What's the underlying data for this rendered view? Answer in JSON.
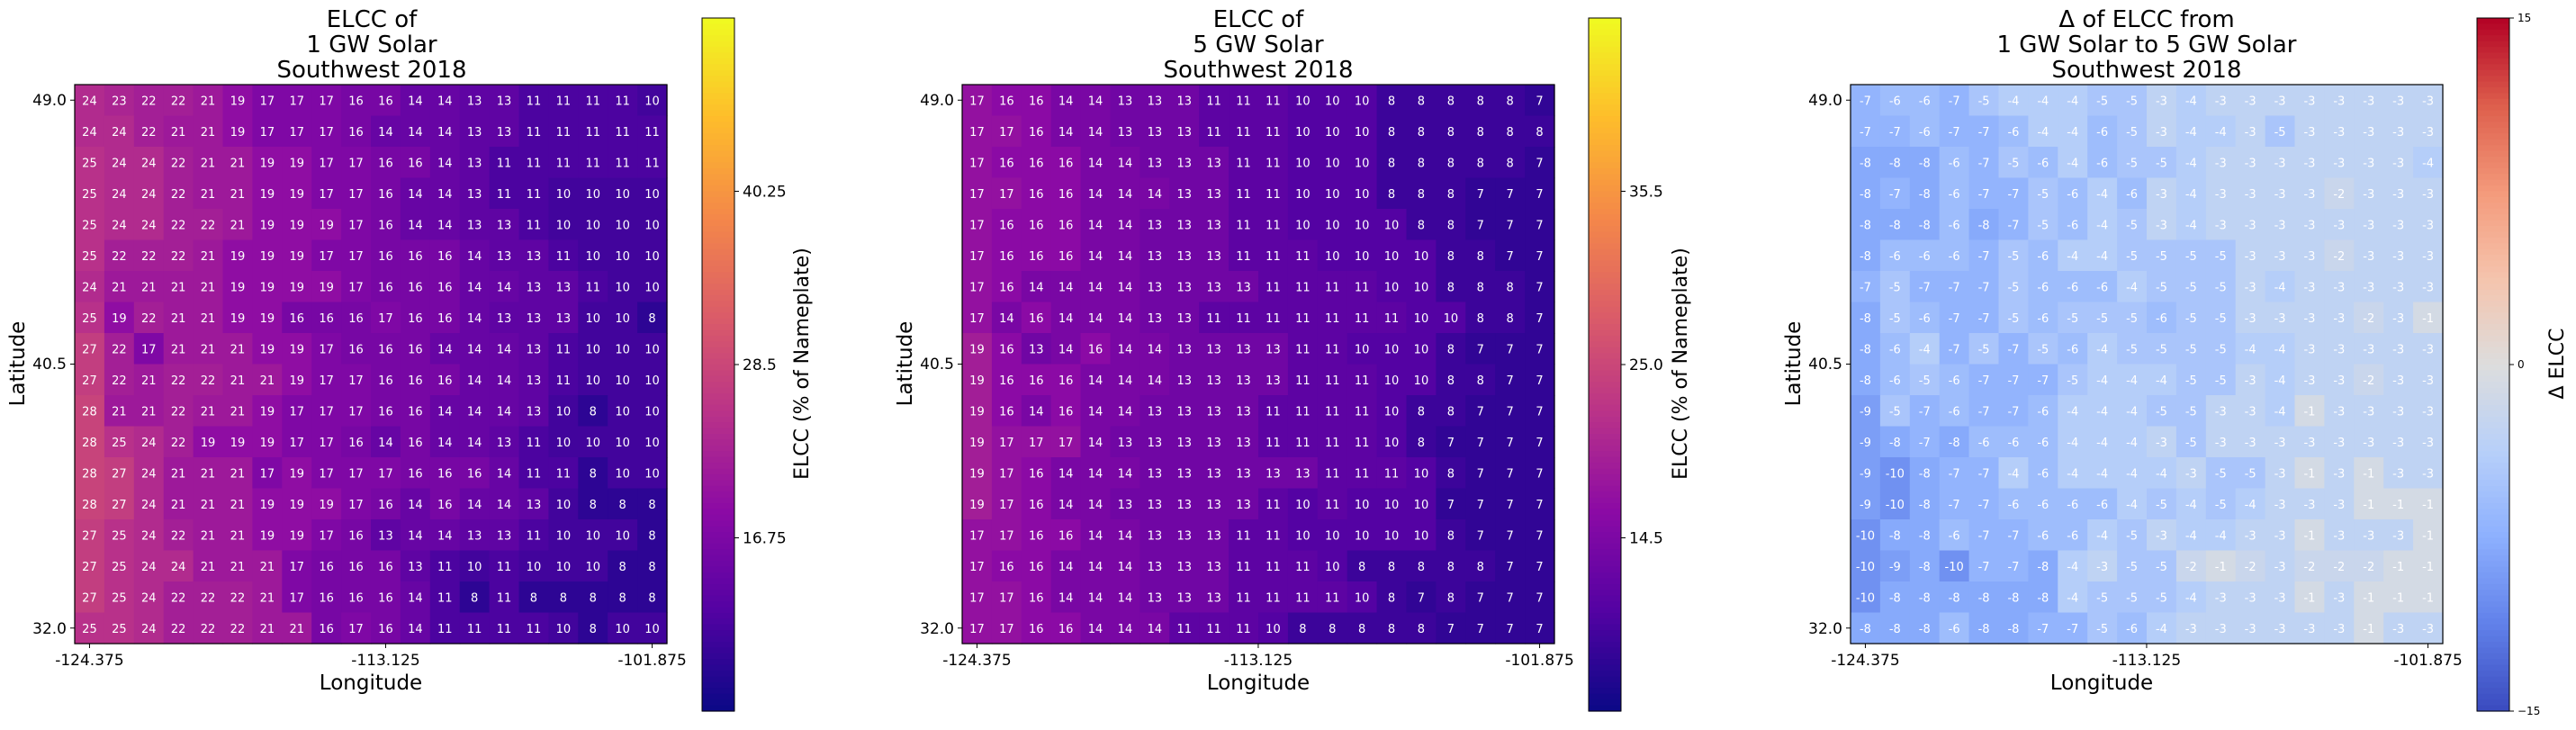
{
  "chart_data": [
    {
      "type": "heatmap",
      "title": [
        "ELCC of",
        "1 GW Solar",
        "Southwest 2018"
      ],
      "xlabel": "Longitude",
      "ylabel": "Latitude",
      "x_ticks": [
        "-124.375",
        "-113.125",
        "-101.875"
      ],
      "y_ticks": [
        "49.0",
        "40.5",
        "32.0"
      ],
      "colorbar": {
        "label": "ELCC (% of Nameplate)",
        "ticks": [
          "40.25",
          "28.5",
          "16.75"
        ],
        "range": [
          5,
          52
        ],
        "tick_values": [
          40.25,
          28.5,
          16.75
        ],
        "colormap": "plasma"
      },
      "values": [
        [
          24,
          23,
          22,
          22,
          21,
          19,
          17,
          17,
          17,
          16,
          16,
          14,
          14,
          13,
          13,
          11,
          11,
          11,
          11,
          10
        ],
        [
          24,
          24,
          22,
          21,
          21,
          19,
          17,
          17,
          17,
          16,
          14,
          14,
          14,
          13,
          13,
          11,
          11,
          11,
          11,
          11
        ],
        [
          25,
          24,
          24,
          22,
          21,
          21,
          19,
          19,
          17,
          17,
          16,
          16,
          14,
          13,
          11,
          11,
          11,
          11,
          11,
          11
        ],
        [
          25,
          24,
          24,
          22,
          21,
          21,
          19,
          19,
          17,
          17,
          16,
          14,
          14,
          13,
          11,
          11,
          10,
          10,
          10,
          10
        ],
        [
          25,
          24,
          24,
          22,
          22,
          21,
          19,
          19,
          19,
          17,
          16,
          14,
          14,
          13,
          13,
          11,
          10,
          10,
          10,
          10
        ],
        [
          25,
          22,
          22,
          22,
          21,
          19,
          19,
          19,
          17,
          17,
          16,
          16,
          16,
          14,
          13,
          13,
          11,
          10,
          10,
          10
        ],
        [
          24,
          21,
          21,
          21,
          21,
          19,
          19,
          19,
          19,
          17,
          16,
          16,
          16,
          14,
          14,
          13,
          13,
          11,
          10,
          10
        ],
        [
          25,
          19,
          22,
          21,
          21,
          19,
          19,
          16,
          16,
          16,
          17,
          16,
          16,
          14,
          13,
          13,
          13,
          10,
          10,
          8
        ],
        [
          27,
          22,
          17,
          21,
          21,
          21,
          19,
          19,
          17,
          16,
          16,
          16,
          14,
          14,
          14,
          13,
          11,
          10,
          10,
          10
        ],
        [
          27,
          22,
          21,
          22,
          22,
          21,
          21,
          19,
          17,
          17,
          16,
          16,
          16,
          14,
          14,
          13,
          11,
          10,
          10,
          10
        ],
        [
          28,
          21,
          21,
          22,
          21,
          21,
          19,
          17,
          17,
          17,
          16,
          16,
          14,
          14,
          14,
          13,
          10,
          8,
          10,
          10
        ],
        [
          28,
          25,
          24,
          22,
          19,
          19,
          19,
          17,
          17,
          16,
          14,
          16,
          14,
          14,
          13,
          11,
          10,
          10,
          10,
          10
        ],
        [
          28,
          27,
          24,
          21,
          21,
          21,
          17,
          19,
          17,
          17,
          17,
          16,
          16,
          16,
          14,
          11,
          11,
          8,
          10,
          10
        ],
        [
          28,
          27,
          24,
          21,
          21,
          21,
          19,
          19,
          19,
          17,
          16,
          14,
          16,
          14,
          14,
          13,
          10,
          8,
          8,
          8
        ],
        [
          27,
          25,
          24,
          22,
          21,
          21,
          19,
          19,
          17,
          16,
          13,
          14,
          14,
          13,
          13,
          11,
          10,
          10,
          10,
          8
        ],
        [
          27,
          25,
          24,
          24,
          21,
          21,
          21,
          17,
          16,
          16,
          16,
          13,
          11,
          10,
          11,
          10,
          10,
          10,
          8,
          8
        ],
        [
          27,
          25,
          24,
          22,
          22,
          22,
          21,
          17,
          16,
          16,
          16,
          14,
          11,
          8,
          11,
          8,
          8,
          8,
          8,
          8
        ],
        [
          25,
          25,
          24,
          22,
          22,
          22,
          21,
          21,
          16,
          17,
          16,
          14,
          11,
          11,
          11,
          11,
          10,
          8,
          10,
          10
        ]
      ]
    },
    {
      "type": "heatmap",
      "title": [
        "ELCC of",
        "5 GW Solar",
        "Southwest 2018"
      ],
      "xlabel": "Longitude",
      "ylabel": "Latitude",
      "x_ticks": [
        "-124.375",
        "-113.125",
        "-101.875"
      ],
      "y_ticks": [
        "49.0",
        "40.5",
        "32.0"
      ],
      "colorbar": {
        "label": "ELCC (% of Nameplate)",
        "ticks": [
          "35.5",
          "25.0",
          "14.5"
        ],
        "range": [
          4,
          46
        ],
        "tick_values": [
          35.5,
          25.0,
          14.5
        ],
        "colormap": "plasma"
      },
      "values": [
        [
          17,
          16,
          16,
          14,
          14,
          13,
          13,
          13,
          11,
          11,
          11,
          10,
          10,
          10,
          8,
          8,
          8,
          8,
          8,
          7
        ],
        [
          17,
          17,
          16,
          14,
          14,
          13,
          13,
          13,
          11,
          11,
          11,
          10,
          10,
          10,
          8,
          8,
          8,
          8,
          8,
          8
        ],
        [
          17,
          16,
          16,
          16,
          14,
          14,
          13,
          13,
          13,
          11,
          11,
          10,
          10,
          10,
          8,
          8,
          8,
          8,
          8,
          7
        ],
        [
          17,
          17,
          16,
          16,
          14,
          14,
          14,
          13,
          13,
          11,
          11,
          10,
          10,
          10,
          8,
          8,
          8,
          7,
          7,
          7
        ],
        [
          17,
          16,
          16,
          16,
          14,
          14,
          13,
          13,
          13,
          11,
          11,
          10,
          10,
          10,
          10,
          8,
          8,
          7,
          7,
          7
        ],
        [
          17,
          16,
          16,
          16,
          14,
          14,
          13,
          13,
          13,
          11,
          11,
          11,
          10,
          10,
          10,
          10,
          8,
          8,
          7,
          7
        ],
        [
          17,
          16,
          14,
          14,
          14,
          14,
          13,
          13,
          13,
          13,
          11,
          11,
          11,
          11,
          10,
          10,
          8,
          8,
          8,
          7
        ],
        [
          17,
          14,
          16,
          14,
          14,
          14,
          13,
          13,
          11,
          11,
          11,
          11,
          11,
          11,
          11,
          10,
          10,
          8,
          8,
          7
        ],
        [
          19,
          16,
          13,
          14,
          16,
          14,
          14,
          13,
          13,
          13,
          13,
          11,
          11,
          10,
          10,
          10,
          8,
          7,
          7,
          7
        ],
        [
          19,
          16,
          16,
          16,
          14,
          14,
          14,
          13,
          13,
          13,
          13,
          11,
          11,
          11,
          10,
          10,
          8,
          8,
          7,
          7
        ],
        [
          19,
          16,
          14,
          16,
          14,
          14,
          13,
          13,
          13,
          13,
          11,
          11,
          11,
          11,
          10,
          8,
          8,
          7,
          7,
          7
        ],
        [
          19,
          17,
          17,
          17,
          14,
          13,
          13,
          13,
          13,
          13,
          11,
          11,
          11,
          11,
          10,
          8,
          7,
          7,
          7,
          7
        ],
        [
          19,
          17,
          16,
          14,
          14,
          14,
          13,
          13,
          13,
          13,
          13,
          13,
          11,
          11,
          11,
          10,
          8,
          7,
          7,
          7
        ],
        [
          19,
          17,
          16,
          14,
          14,
          13,
          13,
          13,
          13,
          13,
          11,
          10,
          11,
          10,
          10,
          10,
          7,
          7,
          7,
          7
        ],
        [
          17,
          17,
          16,
          16,
          14,
          14,
          13,
          13,
          13,
          11,
          11,
          10,
          10,
          10,
          10,
          10,
          8,
          7,
          7,
          7
        ],
        [
          17,
          16,
          16,
          14,
          14,
          14,
          13,
          13,
          13,
          11,
          11,
          11,
          10,
          8,
          8,
          8,
          8,
          8,
          7,
          7
        ],
        [
          17,
          17,
          16,
          14,
          14,
          14,
          13,
          13,
          13,
          11,
          11,
          11,
          11,
          10,
          8,
          7,
          8,
          7,
          7,
          7
        ],
        [
          17,
          17,
          16,
          16,
          14,
          14,
          14,
          11,
          11,
          11,
          10,
          8,
          8,
          8,
          8,
          8,
          7,
          7,
          7,
          7
        ]
      ]
    },
    {
      "type": "heatmap",
      "title": [
        "Δ of ELCC from",
        "1 GW Solar to 5 GW Solar",
        "Southwest 2018"
      ],
      "xlabel": "Longitude",
      "ylabel": "Latitude",
      "x_ticks": [
        "-124.375",
        "-113.125",
        "-101.875"
      ],
      "y_ticks": [
        "49.0",
        "40.5",
        "32.0"
      ],
      "colorbar": {
        "label": "Δ ELCC",
        "ticks": [
          "15",
          "0",
          "−15"
        ],
        "range": [
          -15,
          15
        ],
        "tick_values": [
          15,
          0,
          -15
        ],
        "colormap": "coolwarm"
      },
      "values": [
        [
          -7,
          -6,
          -6,
          -7,
          -5,
          -4,
          -4,
          -4,
          -5,
          -5,
          -3,
          -4,
          -3,
          -3,
          -3,
          -3,
          -3,
          -3,
          -3,
          -3
        ],
        [
          -7,
          -7,
          -6,
          -7,
          -7,
          -6,
          -4,
          -4,
          -6,
          -5,
          -3,
          -4,
          -4,
          -3,
          -5,
          -3,
          -3,
          -3,
          -3,
          -3
        ],
        [
          -8,
          -8,
          -8,
          -6,
          -7,
          -5,
          -6,
          -4,
          -6,
          -5,
          -5,
          -4,
          -3,
          -3,
          -3,
          -3,
          -3,
          -3,
          -3,
          -4
        ],
        [
          -8,
          -7,
          -8,
          -6,
          -7,
          -7,
          -5,
          -6,
          -4,
          -6,
          -3,
          -4,
          -3,
          -3,
          -3,
          -3,
          -2,
          -3,
          -3,
          -3
        ],
        [
          -8,
          -8,
          -8,
          -6,
          -8,
          -7,
          -5,
          -6,
          -4,
          -5,
          -3,
          -4,
          -3,
          -3,
          -3,
          -3,
          -3,
          -3,
          -3,
          -3
        ],
        [
          -8,
          -6,
          -6,
          -6,
          -7,
          -5,
          -6,
          -4,
          -4,
          -5,
          -5,
          -5,
          -5,
          -3,
          -3,
          -3,
          -2,
          -3,
          -3,
          -3
        ],
        [
          -7,
          -5,
          -7,
          -7,
          -7,
          -5,
          -6,
          -6,
          -6,
          -4,
          -5,
          -5,
          -5,
          -3,
          -4,
          -3,
          -3,
          -3,
          -3,
          -3
        ],
        [
          -8,
          -5,
          -6,
          -7,
          -7,
          -5,
          -6,
          -5,
          -5,
          -5,
          -6,
          -5,
          -5,
          -3,
          -3,
          -3,
          -3,
          -2,
          -3,
          -1
        ],
        [
          -8,
          -6,
          -4,
          -7,
          -5,
          -7,
          -5,
          -6,
          -4,
          -5,
          -5,
          -5,
          -5,
          -4,
          -4,
          -3,
          -3,
          -3,
          -3,
          -3
        ],
        [
          -8,
          -6,
          -5,
          -6,
          -7,
          -7,
          -7,
          -5,
          -4,
          -4,
          -4,
          -5,
          -5,
          -3,
          -4,
          -3,
          -3,
          -2,
          -3,
          -3
        ],
        [
          -9,
          -5,
          -7,
          -6,
          -7,
          -7,
          -6,
          -4,
          -4,
          -4,
          -5,
          -5,
          -3,
          -3,
          -4,
          -1,
          -3,
          -3,
          -3,
          -3
        ],
        [
          -9,
          -8,
          -7,
          -8,
          -6,
          -6,
          -6,
          -4,
          -4,
          -4,
          -3,
          -5,
          -3,
          -3,
          -3,
          -3,
          -3,
          -3,
          -3,
          -3
        ],
        [
          -9,
          -10,
          -8,
          -7,
          -7,
          -4,
          -6,
          -4,
          -4,
          -4,
          -4,
          -3,
          -5,
          -5,
          -3,
          -1,
          -3,
          -1,
          -3,
          -3
        ],
        [
          -9,
          -10,
          -8,
          -7,
          -7,
          -6,
          -6,
          -6,
          -6,
          -4,
          -5,
          -4,
          -5,
          -4,
          -3,
          -3,
          -3,
          -1,
          -1,
          -1
        ],
        [
          -10,
          -8,
          -8,
          -6,
          -7,
          -7,
          -6,
          -6,
          -4,
          -5,
          -3,
          -4,
          -4,
          -3,
          -3,
          -1,
          -3,
          -3,
          -3,
          -1
        ],
        [
          -10,
          -9,
          -8,
          -10,
          -7,
          -7,
          -8,
          -4,
          -3,
          -5,
          -5,
          -2,
          -1,
          -2,
          -3,
          -2,
          -2,
          -2,
          -1,
          -1
        ],
        [
          -10,
          -8,
          -8,
          -8,
          -8,
          -8,
          -8,
          -4,
          -5,
          -5,
          -5,
          -4,
          -3,
          -3,
          -3,
          -1,
          -3,
          -1,
          -1,
          -1
        ],
        [
          -8,
          -8,
          -8,
          -6,
          -8,
          -8,
          -7,
          -7,
          -5,
          -6,
          -4,
          -3,
          -3,
          -3,
          -3,
          -3,
          -3,
          -1,
          -3,
          -3
        ]
      ]
    }
  ]
}
